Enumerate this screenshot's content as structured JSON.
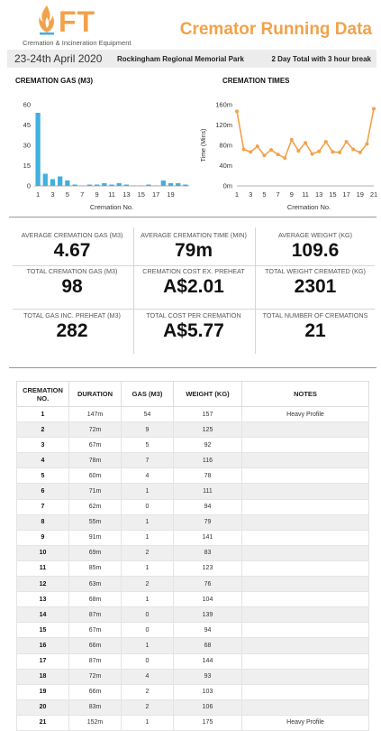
{
  "header": {
    "logo_letters": "FT",
    "logo_tagline": "Cremation & Incineration Equipment",
    "title": "Cremator Running Data"
  },
  "infobar": {
    "date": "23-24th April 2020",
    "venue": "Rockingham Regional Memorial Park",
    "total": "2 Day Total with 3 hour break"
  },
  "colors": {
    "gas_bar": "#3fb0df",
    "times_line": "#f2a24a",
    "accent": "#f2a24a"
  },
  "chart_data": [
    {
      "type": "bar",
      "title": "CREMATION GAS (M3)",
      "xlabel": "Cremation No.",
      "ylabel": "",
      "x": [
        1,
        2,
        3,
        4,
        5,
        6,
        7,
        8,
        9,
        10,
        11,
        12,
        13,
        14,
        15,
        16,
        17,
        18,
        19,
        20,
        21
      ],
      "tick_labels": [
        "1",
        "3",
        "5",
        "7",
        "9",
        "11",
        "13",
        "15",
        "17",
        "19"
      ],
      "y_ticks": [
        "0",
        "15",
        "30",
        "45",
        "60"
      ],
      "ylim": [
        0,
        60
      ],
      "values": [
        54,
        9,
        5,
        7,
        4,
        1,
        0,
        1,
        1,
        2,
        1,
        2,
        1,
        0,
        0,
        1,
        0,
        4,
        2,
        2,
        1
      ],
      "grid": false
    },
    {
      "type": "line",
      "title": "CREMATION TIMES",
      "xlabel": "Cremation No.",
      "ylabel": "Time (Mins)",
      "x": [
        1,
        2,
        3,
        4,
        5,
        6,
        7,
        8,
        9,
        10,
        11,
        12,
        13,
        14,
        15,
        16,
        17,
        18,
        19,
        20,
        21
      ],
      "tick_labels": [
        "1",
        "3",
        "5",
        "7",
        "9",
        "11",
        "13",
        "15",
        "17",
        "19",
        "21"
      ],
      "y_ticks": [
        "0m",
        "40m",
        "80m",
        "120m",
        "160m"
      ],
      "ylim": [
        0,
        160
      ],
      "values": [
        147,
        72,
        67,
        78,
        60,
        71,
        62,
        55,
        91,
        69,
        85,
        63,
        68,
        87,
        67,
        66,
        87,
        72,
        66,
        83,
        152
      ],
      "grid": false
    }
  ],
  "stats": [
    {
      "label": "AVERAGE CREMATION GAS (M3)",
      "value": "4.67"
    },
    {
      "label": "AVERAGE CREMATION TIME (MIN)",
      "value": "79m"
    },
    {
      "label": "AVERAGE WEIGHT (KG)",
      "value": "109.6"
    },
    {
      "label": "TOTAL CREMATION GAS (M3)",
      "value": "98"
    },
    {
      "label": "CREMATION COST  EX. PREHEAT",
      "value": "A$2.01"
    },
    {
      "label": "TOTAL WEIGHT CREMATED (KG)",
      "value": "2301"
    },
    {
      "label": "TOTAL GAS INC. PREHEAT (M3)",
      "value": "282"
    },
    {
      "label": "TOTAL COST PER CREMATION",
      "value": "A$5.77"
    },
    {
      "label": "TOTAL NUMBER OF CREMATIONS",
      "value": "21"
    }
  ],
  "table": {
    "headers": {
      "no_line1": "CREMATION",
      "no_line2": "NO.",
      "duration": "DURATION",
      "gas": "GAS (M3)",
      "weight": "WEIGHT (KG)",
      "notes": "NOTES"
    },
    "rows": [
      {
        "no": "1",
        "duration": "147m",
        "gas": "54",
        "weight": "157",
        "notes": "Heavy Profile"
      },
      {
        "no": "2",
        "duration": "72m",
        "gas": "9",
        "weight": "125",
        "notes": ""
      },
      {
        "no": "3",
        "duration": "67m",
        "gas": "5",
        "weight": "92",
        "notes": ""
      },
      {
        "no": "4",
        "duration": "78m",
        "gas": "7",
        "weight": "116",
        "notes": ""
      },
      {
        "no": "5",
        "duration": "60m",
        "gas": "4",
        "weight": "78",
        "notes": ""
      },
      {
        "no": "6",
        "duration": "71m",
        "gas": "1",
        "weight": "111",
        "notes": ""
      },
      {
        "no": "7",
        "duration": "62m",
        "gas": "0",
        "weight": "94",
        "notes": ""
      },
      {
        "no": "8",
        "duration": "55m",
        "gas": "1",
        "weight": "79",
        "notes": ""
      },
      {
        "no": "9",
        "duration": "91m",
        "gas": "1",
        "weight": "141",
        "notes": ""
      },
      {
        "no": "10",
        "duration": "69m",
        "gas": "2",
        "weight": "83",
        "notes": ""
      },
      {
        "no": "11",
        "duration": "85m",
        "gas": "1",
        "weight": "123",
        "notes": ""
      },
      {
        "no": "12",
        "duration": "63m",
        "gas": "2",
        "weight": "76",
        "notes": ""
      },
      {
        "no": "13",
        "duration": "68m",
        "gas": "1",
        "weight": "104",
        "notes": ""
      },
      {
        "no": "14",
        "duration": "87m",
        "gas": "0",
        "weight": "139",
        "notes": ""
      },
      {
        "no": "15",
        "duration": "67m",
        "gas": "0",
        "weight": "94",
        "notes": ""
      },
      {
        "no": "16",
        "duration": "66m",
        "gas": "1",
        "weight": "68",
        "notes": ""
      },
      {
        "no": "17",
        "duration": "87m",
        "gas": "0",
        "weight": "144",
        "notes": ""
      },
      {
        "no": "18",
        "duration": "72m",
        "gas": "4",
        "weight": "93",
        "notes": ""
      },
      {
        "no": "19",
        "duration": "66m",
        "gas": "2",
        "weight": "103",
        "notes": ""
      },
      {
        "no": "20",
        "duration": "83m",
        "gas": "2",
        "weight": "106",
        "notes": ""
      },
      {
        "no": "21",
        "duration": "152m",
        "gas": "1",
        "weight": "175",
        "notes": "Heavy Profile"
      }
    ]
  }
}
